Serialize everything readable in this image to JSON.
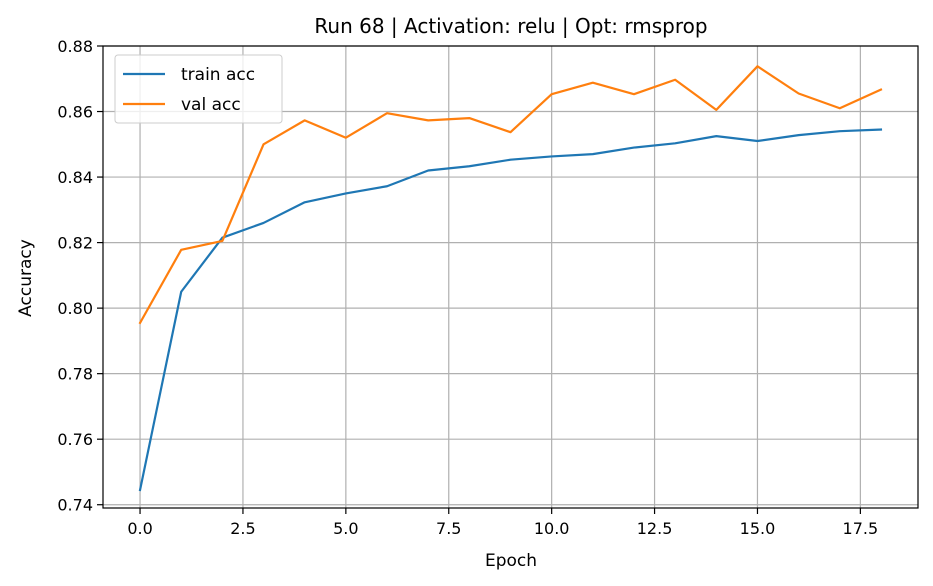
{
  "chart_data": {
    "type": "line",
    "title": "Run 68 | Activation: relu | Opt: rmsprop",
    "xlabel": "Epoch",
    "ylabel": "Accuracy",
    "xlim": [
      -0.9,
      18.9
    ],
    "ylim": [
      0.739,
      0.88
    ],
    "xticks": [
      0.0,
      2.5,
      5.0,
      7.5,
      10.0,
      12.5,
      15.0,
      17.5
    ],
    "xtick_labels": [
      "0.0",
      "2.5",
      "5.0",
      "7.5",
      "10.0",
      "12.5",
      "15.0",
      "17.5"
    ],
    "yticks": [
      0.74,
      0.76,
      0.78,
      0.8,
      0.82,
      0.84,
      0.86,
      0.88
    ],
    "ytick_labels": [
      "0.74",
      "0.76",
      "0.78",
      "0.80",
      "0.82",
      "0.84",
      "0.86",
      "0.88"
    ],
    "grid": true,
    "legend_position": "top-left",
    "x": [
      0,
      1,
      2,
      3,
      4,
      5,
      6,
      7,
      8,
      9,
      10,
      11,
      12,
      13,
      14,
      15,
      16,
      17,
      18
    ],
    "series": [
      {
        "name": "train acc",
        "color": "#1f77b4",
        "values": [
          0.7445,
          0.805,
          0.8215,
          0.826,
          0.8323,
          0.835,
          0.8372,
          0.842,
          0.8433,
          0.8453,
          0.8463,
          0.847,
          0.849,
          0.8503,
          0.8525,
          0.851,
          0.8528,
          0.854,
          0.8545
        ]
      },
      {
        "name": "val acc",
        "color": "#ff7f0e",
        "values": [
          0.7955,
          0.8178,
          0.8205,
          0.85,
          0.8573,
          0.852,
          0.8595,
          0.8573,
          0.858,
          0.8537,
          0.8653,
          0.8688,
          0.8653,
          0.8697,
          0.8605,
          0.8738,
          0.8655,
          0.861,
          0.8667
        ]
      }
    ]
  }
}
